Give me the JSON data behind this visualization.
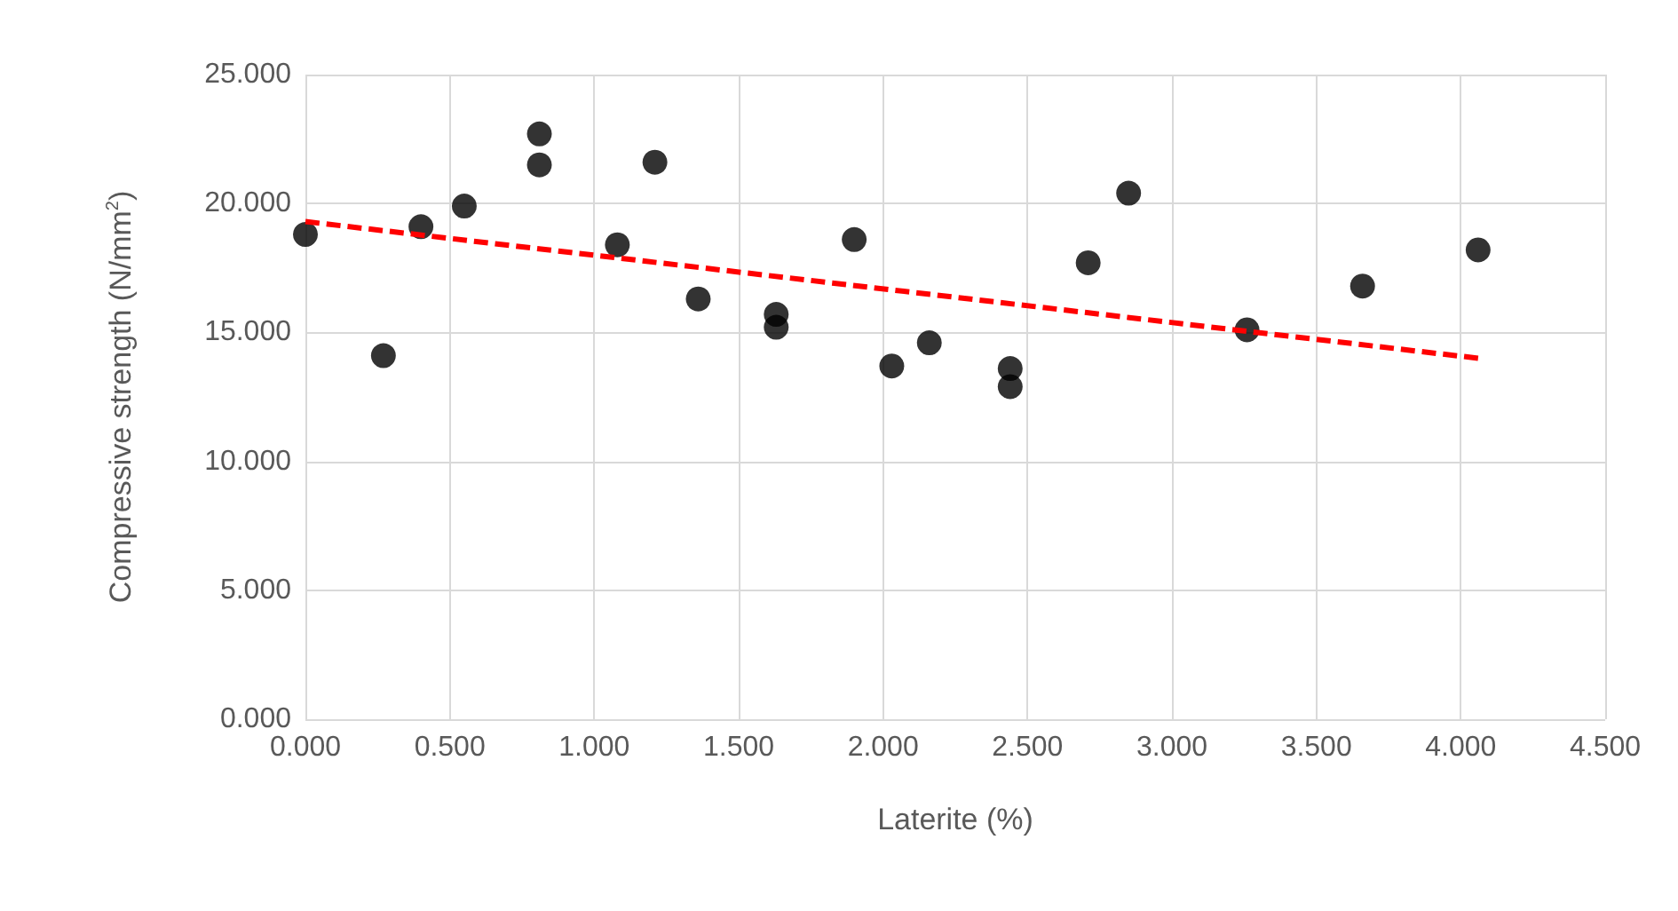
{
  "chart_data": {
    "type": "scatter",
    "xlabel": "Laterite (%)",
    "ylabel": "Compressive strength (N/mm$^{2}$)",
    "xlim": [
      0,
      4.5
    ],
    "xticks": [
      {
        "value": 0,
        "label": "0.000"
      },
      {
        "value": 0.5,
        "label": "0.500"
      },
      {
        "value": 1,
        "label": "1.000"
      },
      {
        "value": 1.5,
        "label": "1.500"
      },
      {
        "value": 2,
        "label": "2.000"
      },
      {
        "value": 2.5,
        "label": "2.500"
      },
      {
        "value": 3,
        "label": "3.000"
      },
      {
        "value": 3.5,
        "label": "3.500"
      },
      {
        "value": 4,
        "label": "4.000"
      },
      {
        "value": 4.5,
        "label": "4.500"
      }
    ],
    "ylim": [
      0,
      25
    ],
    "yticks": [
      {
        "value": 0,
        "label": "0.000"
      },
      {
        "value": 5,
        "label": "5.000"
      },
      {
        "value": 10,
        "label": "10.000"
      },
      {
        "value": 15,
        "label": "15.000"
      },
      {
        "value": 20,
        "label": "20.000"
      },
      {
        "value": 25,
        "label": "25.000"
      }
    ],
    "grid": true,
    "series": [
      {
        "color": "#000000",
        "marker": "circle",
        "x": [
          0,
          0.27,
          0.4,
          0.55,
          0.81,
          0.81,
          1.08,
          1.21,
          1.36,
          1.63,
          1.63,
          1.9,
          2.03,
          2.16,
          2.44,
          2.44,
          2.71,
          2.85,
          3.26,
          3.66,
          4.06
        ],
        "values": [
          18.8,
          14.1,
          19.1,
          19.9,
          22.7,
          21.5,
          18.4,
          21.6,
          16.3,
          15.7,
          15.2,
          18.6,
          13.7,
          14.6,
          13.6,
          12.9,
          17.7,
          20.4,
          15.1,
          16.8,
          18.2
        ]
      },
      {
        "type": "line",
        "color": "#ff0000",
        "marker": "none",
        "line_style": "dashed",
        "x": [
          0,
          4.06
        ],
        "values": [
          19.3,
          14.0
        ]
      }
    ]
  }
}
